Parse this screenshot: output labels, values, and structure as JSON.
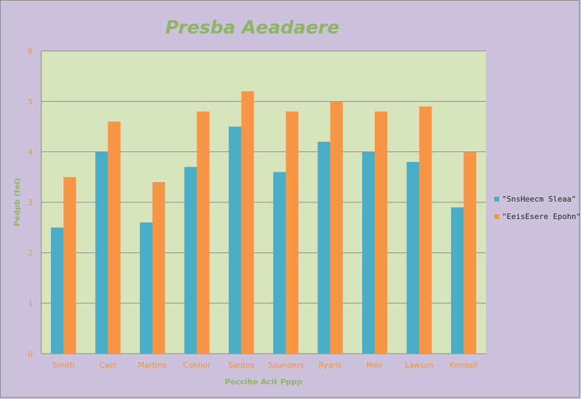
{
  "chart_data": {
    "type": "bar",
    "title": "Presba Aeadaere",
    "xlabel": "Peccihe Acit Pppp",
    "ylabel": "Pedpb (tei)",
    "ylim": [
      0,
      6
    ],
    "yticks": [
      0,
      1,
      2,
      3,
      4,
      5,
      6
    ],
    "grid": true,
    "legend_position": "right",
    "categories": [
      "Smith",
      "Cast",
      "Martine",
      "Connor",
      "Santos",
      "Saunders",
      "Ryans",
      "Meir",
      "Lawson",
      "Kendall"
    ],
    "series": [
      {
        "name": "\"SnsHeecm Sleaa\"",
        "color": "#4bacc6",
        "values": [
          2.5,
          4.0,
          2.6,
          3.7,
          4.5,
          3.6,
          4.2,
          4.0,
          3.8,
          2.9
        ]
      },
      {
        "name": "\"EeisEsere Epohn\"",
        "color": "#f79646",
        "values": [
          3.5,
          4.6,
          3.4,
          4.8,
          5.2,
          4.8,
          5.0,
          4.8,
          4.9,
          4.0
        ]
      }
    ],
    "colors": {
      "background": "#cdc2dc",
      "plot_area": "#d8e4bc",
      "gridline": "#8a8a8a",
      "title": "#8db563",
      "tick_label": "#f0903c"
    }
  }
}
